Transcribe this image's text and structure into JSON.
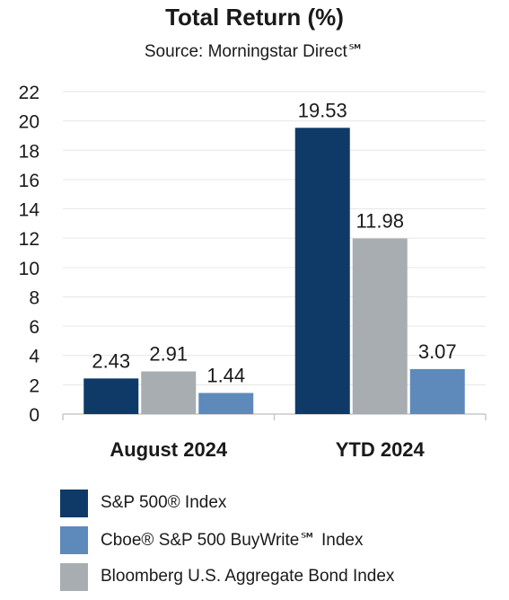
{
  "chart_data": {
    "type": "bar",
    "title": "Total Return (%)",
    "subtitle": "Source: Morningstar Direct℠",
    "categories": [
      "August 2024",
      "YTD 2024"
    ],
    "series": [
      {
        "name": "S&P 500® Index",
        "color": "#0f3a67",
        "values": [
          2.43,
          19.53
        ]
      },
      {
        "name": "Bloomberg U.S. Aggregate Bond Index",
        "color": "#a7adb1",
        "values": [
          2.91,
          11.98
        ]
      },
      {
        "name": "Cboe® S&P 500 BuyWrite℠ Index",
        "color": "#5e89bb",
        "values": [
          1.44,
          3.07
        ]
      }
    ],
    "ylim": [
      0,
      22
    ],
    "yticks": [
      0,
      2,
      4,
      6,
      8,
      10,
      12,
      14,
      16,
      18,
      20,
      22
    ],
    "grid": true,
    "legend_order": [
      0,
      2,
      1
    ],
    "legend_position": "bottom"
  }
}
